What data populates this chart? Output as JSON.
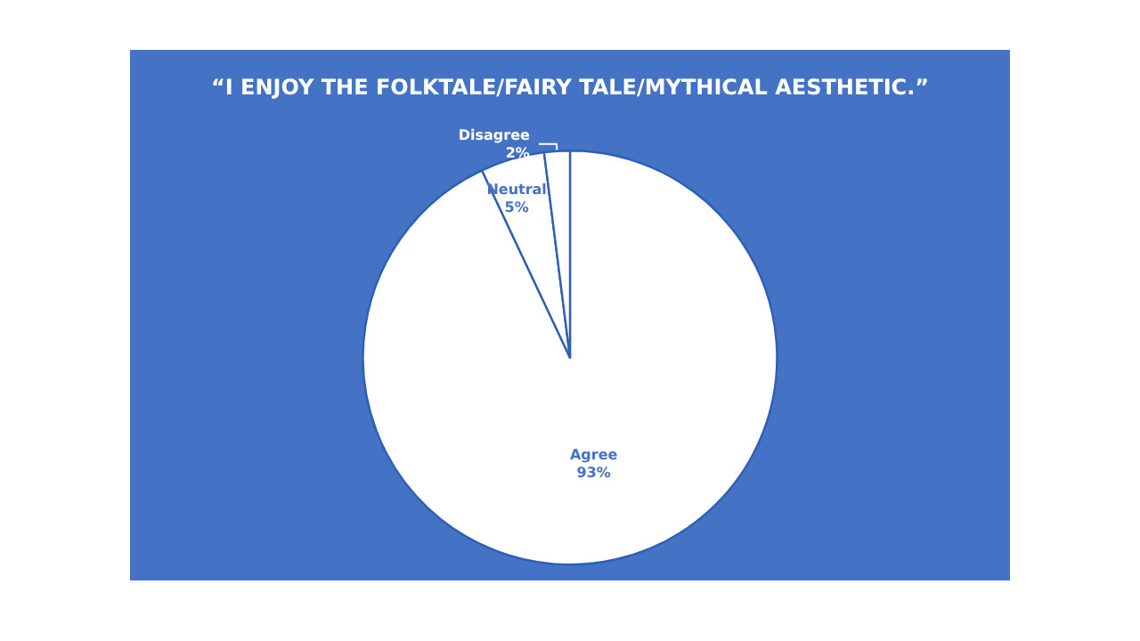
{
  "chart_data": {
    "type": "pie",
    "title": "“I ENJOY THE FOLKTALE/FAIRY TALE/MYTHICAL AESTHETIC.”",
    "categories": [
      "Agree",
      "Neutral",
      "Disagree"
    ],
    "values": [
      93,
      5,
      2
    ],
    "value_labels": [
      "93%",
      "5%",
      "2%"
    ],
    "colors": [
      "#ffffff",
      "#ffffff",
      "#ffffff"
    ],
    "legend": false
  }
}
